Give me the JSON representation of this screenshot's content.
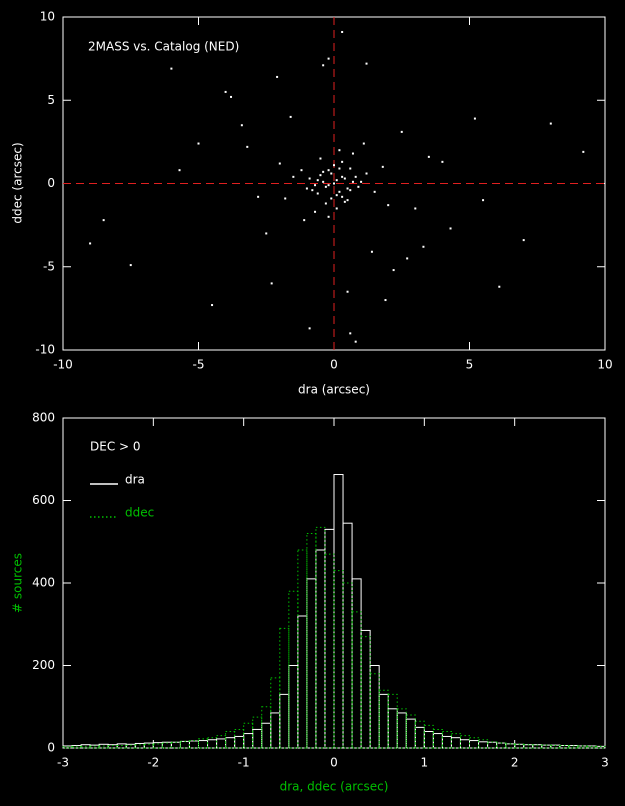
{
  "chart_data": [
    {
      "type": "scatter",
      "title": "2MASS vs. Catalog (NED)",
      "x_label": "dra (arcsec)",
      "y_label": "ddec (arcsec)",
      "x": [
        0.1,
        -0.2,
        0.3,
        -0.4,
        0.5,
        -0.1,
        0.2,
        -0.3,
        0.0,
        0.4,
        -0.5,
        0.6,
        -0.6,
        0.1,
        -0.2,
        0.3,
        0.7,
        -0.7,
        0.2,
        -0.1,
        0.8,
        -0.8,
        0.0,
        0.5,
        -0.4,
        0.9,
        -0.9,
        0.3,
        -0.3,
        0.6,
        -0.6,
        1.0,
        -1.0,
        0.1,
        -0.5,
        0.4,
        1.2,
        -1.2,
        0.2,
        -0.2,
        1.5,
        -1.5,
        0.7,
        -0.7,
        1.8,
        -1.8,
        2.0,
        -2.0,
        1.1,
        -1.1,
        2.5,
        -2.5,
        3.0,
        -3.2,
        1.4,
        -1.6,
        2.2,
        -2.8,
        3.5,
        -3.8,
        0.5,
        -0.4,
        4.3,
        -4.5,
        5.2,
        -5.0,
        6.1,
        -6.0,
        7.0,
        -7.5,
        8.0,
        -8.5,
        2.7,
        -2.3,
        1.2,
        -0.9,
        0.3,
        0.6,
        4.0,
        -4.0,
        3.3,
        -3.4,
        5.5,
        -5.7,
        1.9,
        -2.1,
        9.2,
        -9.0,
        0.8,
        -0.2
      ],
      "y": [
        0.2,
        -0.1,
        0.4,
        0.1,
        -0.3,
        0.6,
        -0.5,
        -0.2,
        0.0,
        0.3,
        0.5,
        -0.4,
        0.2,
        -0.7,
        0.8,
        -0.8,
        0.1,
        -0.1,
        0.9,
        -0.9,
        0.4,
        -0.4,
        1.1,
        -1.0,
        0.7,
        -0.2,
        0.3,
        1.3,
        -1.2,
        0.9,
        -0.6,
        0.1,
        -0.3,
        -1.5,
        1.5,
        -1.1,
        0.6,
        0.8,
        2.0,
        -2.0,
        -0.5,
        0.4,
        1.8,
        -1.7,
        1.0,
        -0.9,
        -1.3,
        1.2,
        2.4,
        -2.2,
        3.1,
        -3.0,
        -1.5,
        2.2,
        -4.1,
        4.0,
        -5.2,
        -0.8,
        1.6,
        5.2,
        -6.5,
        7.1,
        -2.7,
        -7.3,
        3.9,
        2.4,
        -6.2,
        6.9,
        -3.4,
        -4.9,
        3.6,
        -2.2,
        -4.5,
        -6.0,
        7.2,
        -8.7,
        9.1,
        -9.0,
        1.3,
        5.5,
        -3.8,
        3.5,
        -1.0,
        0.8,
        -7.0,
        6.4,
        1.9,
        -3.6,
        -9.5,
        7.5
      ],
      "color": "#ffffff",
      "ref_color": "#e02020",
      "ref_x": 0,
      "ref_y": 0,
      "xlim": [
        -10,
        10
      ],
      "ylim": [
        -10,
        10
      ],
      "xticks": [
        -10,
        -5,
        0,
        5,
        10
      ],
      "yticks": [
        -10,
        -5,
        0,
        5,
        10
      ]
    },
    {
      "type": "histogram",
      "annotation": "DEC > 0",
      "x_label": "dra, ddec (arcsec)",
      "y_label": "# sources",
      "label_color": "#00c000",
      "bins": [
        -3,
        -2.9,
        -2.8,
        -2.7,
        -2.6,
        -2.5,
        -2.4,
        -2.3,
        -2.2,
        -2.1,
        -2,
        -1.9,
        -1.8,
        -1.7,
        -1.6,
        -1.5,
        -1.4,
        -1.3,
        -1.2,
        -1.1,
        -1,
        -0.9,
        -0.8,
        -0.7,
        -0.6,
        -0.5,
        -0.4,
        -0.3,
        -0.2,
        -0.1,
        0,
        0.1,
        0.2,
        0.3,
        0.4,
        0.5,
        0.6,
        0.7,
        0.8,
        0.9,
        1,
        1.1,
        1.2,
        1.3,
        1.4,
        1.5,
        1.6,
        1.7,
        1.8,
        1.9,
        2,
        2.1,
        2.2,
        2.3,
        2.4,
        2.5,
        2.6,
        2.7,
        2.8,
        2.9,
        3
      ],
      "series": [
        {
          "name": "dra",
          "color": "#ffffff",
          "linestyle": "solid",
          "values": [
            5,
            6,
            8,
            7,
            9,
            8,
            10,
            9,
            11,
            12,
            13,
            14,
            14,
            16,
            17,
            18,
            20,
            22,
            25,
            28,
            35,
            45,
            60,
            85,
            130,
            200,
            320,
            410,
            480,
            530,
            663,
            545,
            410,
            285,
            200,
            130,
            95,
            85,
            70,
            50,
            40,
            35,
            28,
            25,
            20,
            18,
            15,
            14,
            12,
            10,
            9,
            8,
            8,
            7,
            7,
            6,
            6,
            5,
            5,
            4
          ]
        },
        {
          "name": "ddec",
          "color": "#00c000",
          "linestyle": "dotted",
          "values": [
            3,
            4,
            4,
            5,
            5,
            6,
            6,
            7,
            8,
            9,
            10,
            12,
            14,
            16,
            18,
            22,
            25,
            30,
            40,
            45,
            60,
            75,
            100,
            170,
            290,
            380,
            480,
            520,
            535,
            470,
            430,
            400,
            330,
            270,
            180,
            140,
            130,
            95,
            80,
            65,
            55,
            45,
            40,
            35,
            30,
            25,
            20,
            15,
            12,
            10,
            9,
            8,
            7,
            7,
            6,
            6,
            5,
            5,
            4,
            4
          ]
        }
      ],
      "xlim": [
        -3,
        3
      ],
      "ylim": [
        0,
        800
      ],
      "xticks": [
        -3,
        -2,
        -1,
        0,
        1,
        2,
        3
      ],
      "yticks": [
        0,
        200,
        400,
        600,
        800
      ]
    }
  ]
}
